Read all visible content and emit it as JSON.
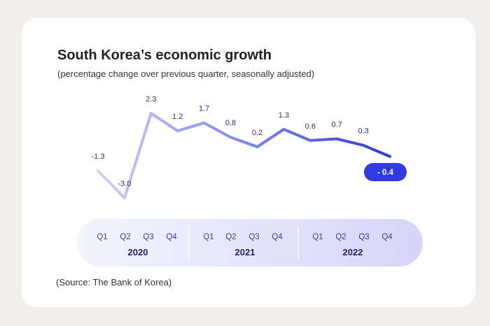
{
  "header": {
    "title": "South Korea’s economic growth",
    "subtitle": "(percentage change over previous quarter, seasonally adjusted)"
  },
  "footer": {
    "source": "(Source: The Bank of Korea)"
  },
  "colors": {
    "line_start": "#cdd0f7",
    "line_end": "#2f3ae0",
    "highlight_badge": "#2f3ae0",
    "axis_band_start": "#f4f4fd",
    "axis_band_end": "#d5d6f8"
  },
  "chart_data": {
    "type": "line",
    "title": "South Korea’s economic growth",
    "subtitle": "(percentage change over previous quarter, seasonally adjusted)",
    "xlabel": "",
    "ylabel": "",
    "quarters": [
      "Q1",
      "Q2",
      "Q3",
      "Q4"
    ],
    "years": [
      "2020",
      "2021",
      "2022"
    ],
    "categories": [
      "2020 Q1",
      "2020 Q2",
      "2020 Q3",
      "2020 Q4",
      "2021 Q1",
      "2021 Q2",
      "2021 Q3",
      "2021 Q4",
      "2022 Q1",
      "2022 Q2",
      "2022 Q3",
      "2022 Q4"
    ],
    "values": [
      -1.3,
      -3.0,
      2.3,
      1.2,
      1.7,
      0.8,
      0.2,
      1.3,
      0.6,
      0.7,
      0.3,
      -0.4
    ],
    "data_labels": [
      "-1.3",
      "-3.0",
      "2.3",
      "1.2",
      "1.7",
      "0.8",
      "0.2",
      "1.3",
      "0.6",
      "0.7",
      "0.3",
      "- 0.4"
    ],
    "ylim": [
      -3.0,
      2.3
    ],
    "grid": false,
    "legend": "none",
    "highlighted_point": "2022 Q4"
  }
}
